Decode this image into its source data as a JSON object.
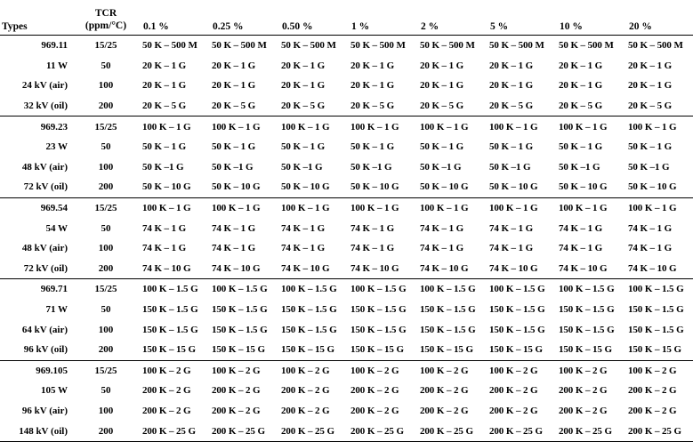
{
  "header": {
    "types": "Types",
    "tcr_line1": "TCR",
    "tcr_line2": "(ppm/°C)",
    "tolerances": [
      "0.1 %",
      "0.25 %",
      "0.50 %",
      "1 %",
      "2 %",
      "5 %",
      "10 %",
      "20 %"
    ]
  },
  "groups": [
    {
      "rows": [
        {
          "type": "969.11",
          "tcr": "15/25",
          "values": [
            "50 K – 500 M",
            "50 K – 500 M",
            "50 K – 500 M",
            "50 K – 500 M",
            "50 K – 500 M",
            "50 K – 500 M",
            "50 K – 500 M",
            "50 K – 500 M"
          ]
        },
        {
          "type": "11 W",
          "tcr": "50",
          "values": [
            "20 K – 1 G",
            "20 K – 1 G",
            "20 K – 1 G",
            "20 K – 1 G",
            "20 K – 1 G",
            "20 K – 1 G",
            "20 K – 1 G",
            "20 K – 1 G"
          ]
        },
        {
          "type": "24 kV (air)",
          "tcr": "100",
          "values": [
            "20 K – 1 G",
            "20 K – 1 G",
            "20 K – 1 G",
            "20 K – 1 G",
            "20 K – 1 G",
            "20 K – 1 G",
            "20 K – 1 G",
            "20 K – 1 G"
          ]
        },
        {
          "type": "32 kV (oil)",
          "tcr": "200",
          "values": [
            "20 K – 5 G",
            "20 K – 5 G",
            "20 K – 5 G",
            "20 K – 5 G",
            "20 K – 5 G",
            "20 K – 5 G",
            "20 K – 5 G",
            "20 K – 5 G"
          ]
        }
      ]
    },
    {
      "rows": [
        {
          "type": "969.23",
          "tcr": "15/25",
          "values": [
            "100 K – 1 G",
            "100 K – 1 G",
            "100 K – 1 G",
            "100 K – 1 G",
            "100 K – 1 G",
            "100 K – 1 G",
            "100 K – 1 G",
            "100 K – 1 G"
          ]
        },
        {
          "type": "23 W",
          "tcr": "50",
          "values": [
            "50 K – 1 G",
            "50 K – 1 G",
            "50 K – 1 G",
            "50 K – 1 G",
            "50 K – 1 G",
            "50 K – 1 G",
            "50 K – 1 G",
            "50 K – 1 G"
          ]
        },
        {
          "type": "48 kV (air)",
          "tcr": "100",
          "values": [
            "50 K –1 G",
            "50 K –1 G",
            "50 K –1 G",
            "50 K –1 G",
            "50 K –1 G",
            "50 K –1 G",
            "50 K –1 G",
            "50 K –1 G"
          ]
        },
        {
          "type": "72 kV (oil)",
          "tcr": "200",
          "values": [
            "50 K – 10 G",
            "50 K – 10 G",
            "50 K – 10 G",
            "50 K – 10 G",
            "50 K – 10 G",
            "50 K – 10 G",
            "50 K – 10 G",
            "50 K – 10 G"
          ]
        }
      ]
    },
    {
      "rows": [
        {
          "type": "969.54",
          "tcr": "15/25",
          "values": [
            "100 K – 1 G",
            "100 K – 1 G",
            "100 K – 1 G",
            "100 K – 1 G",
            "100 K – 1 G",
            "100 K – 1 G",
            "100 K – 1 G",
            "100 K – 1 G"
          ]
        },
        {
          "type": "54 W",
          "tcr": "50",
          "values": [
            "74 K – 1 G",
            "74 K – 1 G",
            "74 K – 1 G",
            "74 K – 1 G",
            "74 K – 1 G",
            "74 K – 1 G",
            "74 K – 1 G",
            "74 K – 1 G"
          ]
        },
        {
          "type": "48 kV (air)",
          "tcr": "100",
          "values": [
            "74 K – 1 G",
            "74 K – 1 G",
            "74 K – 1 G",
            "74 K – 1 G",
            "74 K – 1 G",
            "74 K – 1 G",
            "74 K – 1 G",
            "74 K – 1 G"
          ]
        },
        {
          "type": "72 kV (oil)",
          "tcr": "200",
          "values": [
            "74 K – 10 G",
            "74 K – 10 G",
            "74 K – 10 G",
            "74 K – 10 G",
            "74 K – 10 G",
            "74 K – 10 G",
            "74 K – 10 G",
            "74 K – 10 G"
          ]
        }
      ]
    },
    {
      "rows": [
        {
          "type": "969.71",
          "tcr": "15/25",
          "values": [
            "100 K – 1.5 G",
            "100 K – 1.5 G",
            "100 K – 1.5 G",
            "100 K – 1.5 G",
            "100 K – 1.5 G",
            "100 K – 1.5 G",
            "100 K – 1.5 G",
            "100 K – 1.5 G"
          ]
        },
        {
          "type": "71 W",
          "tcr": "50",
          "values": [
            "150 K – 1.5 G",
            "150 K – 1.5 G",
            "150 K – 1.5 G",
            "150 K – 1.5 G",
            "150 K – 1.5 G",
            "150 K – 1.5 G",
            "150 K – 1.5 G",
            "150 K – 1.5 G"
          ]
        },
        {
          "type": "64 kV (air)",
          "tcr": "100",
          "values": [
            "150 K – 1.5 G",
            "150 K – 1.5 G",
            "150 K – 1.5 G",
            "150 K – 1.5 G",
            "150 K – 1.5 G",
            "150 K – 1.5 G",
            "150 K – 1.5 G",
            "150 K – 1.5 G"
          ]
        },
        {
          "type": "96 kV (oil)",
          "tcr": "200",
          "values": [
            "150 K – 15 G",
            "150 K – 15 G",
            "150 K – 15 G",
            "150 K – 15 G",
            "150 K – 15 G",
            "150 K – 15 G",
            "150 K – 15 G",
            "150 K – 15 G"
          ]
        }
      ]
    },
    {
      "rows": [
        {
          "type": "969.105",
          "tcr": "15/25",
          "values": [
            "100 K – 2 G",
            "100 K – 2 G",
            "100 K – 2 G",
            "100 K – 2 G",
            "100 K – 2 G",
            "100 K – 2 G",
            "100 K – 2 G",
            "100 K – 2 G"
          ]
        },
        {
          "type": "105 W",
          "tcr": "50",
          "values": [
            "200 K – 2 G",
            "200 K – 2 G",
            "200 K – 2 G",
            "200 K – 2 G",
            "200 K – 2 G",
            "200 K – 2 G",
            "200 K – 2 G",
            "200 K – 2 G"
          ]
        },
        {
          "type": "96 kV (air)",
          "tcr": "100",
          "values": [
            "200 K – 2 G",
            "200 K – 2 G",
            "200 K – 2 G",
            "200 K – 2 G",
            "200 K – 2 G",
            "200 K – 2 G",
            "200 K – 2 G",
            "200 K – 2 G"
          ]
        },
        {
          "type": "148 kV (oil)",
          "tcr": "200",
          "values": [
            "200 K – 25 G",
            "200 K – 25 G",
            "200 K – 25 G",
            "200 K – 25 G",
            "200 K – 25 G",
            "200 K – 25 G",
            "200 K – 25 G",
            "200 K – 25 G"
          ]
        }
      ]
    }
  ]
}
